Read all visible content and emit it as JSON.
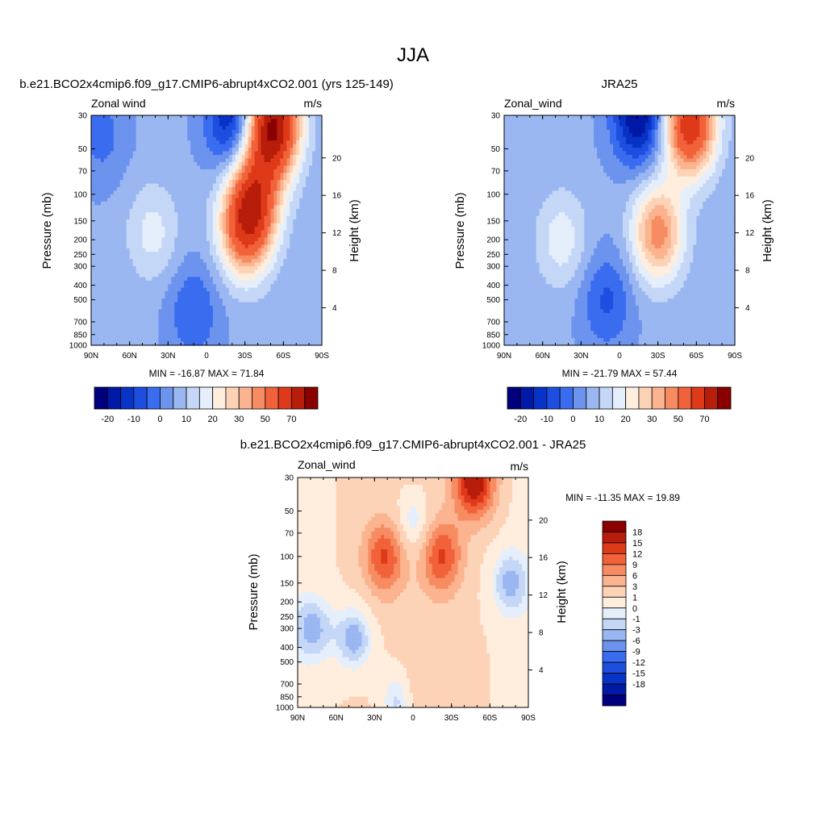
{
  "figure_title": "JJA",
  "colors": {
    "panel_palette": [
      "#00007f",
      "#0019a6",
      "#0733c6",
      "#1e4ee0",
      "#3a6cf0",
      "#6c93ee",
      "#9ab7f2",
      "#c5d7f7",
      "#e5eefb",
      "#ffeedd",
      "#fdd3b8",
      "#fbb48f",
      "#f78c62",
      "#f2623a",
      "#de3a1a",
      "#b71d0b",
      "#8a0000"
    ],
    "diff_palette": [
      "#00007f",
      "#0019a6",
      "#0733c6",
      "#1e4ee0",
      "#3a6cf0",
      "#6c93ee",
      "#9ab7f2",
      "#c5d7f7",
      "#e5eefb",
      "#ffeedd",
      "#fdd3b8",
      "#fbb48f",
      "#f78c62",
      "#f2623a",
      "#de3a1a",
      "#b71d0b",
      "#8a0000"
    ]
  },
  "chart_data": [
    {
      "type": "heatmap",
      "title": "b.e21.BCO2x4cmip6.f09_g17.CMIP6-abrupt4xCO2.001 (yrs 125-149)",
      "variable": "Zonal wind",
      "units": "m/s",
      "ylabel": "Pressure (mb)",
      "ylabel_right": "Height (km)",
      "xticks": [
        "90N",
        "60N",
        "30N",
        "0",
        "30S",
        "60S",
        "90S"
      ],
      "yticks": [
        "30",
        "50",
        "70",
        "100",
        "150",
        "200",
        "250",
        "300",
        "400",
        "500",
        "700",
        "850",
        "1000"
      ],
      "yticks_right": [
        "20",
        "16",
        "12",
        "8",
        "4"
      ],
      "y_scale": "log",
      "stats": "MIN = -16.87  MAX =  71.84",
      "min": -16.87,
      "max": 71.84,
      "colorbar_labels": [
        "-20",
        "-10",
        "0",
        "10",
        "20",
        "30",
        "50",
        "70"
      ],
      "features": [
        {
          "lat": -52,
          "p": 35,
          "value": 71
        },
        {
          "lat": -30,
          "p": 170,
          "value": 45
        },
        {
          "lat": -38,
          "p": 100,
          "value": 40
        },
        {
          "lat": -20,
          "p": 32,
          "value": -16
        },
        {
          "lat": 42,
          "p": 180,
          "value": 17
        },
        {
          "lat": 10,
          "p": 600,
          "value": -5
        },
        {
          "lat": 82,
          "p": 40,
          "value": -2
        }
      ]
    },
    {
      "type": "heatmap",
      "title": "JRA25",
      "variable": "Zonal_wind",
      "units": "m/s",
      "ylabel": "Pressure (mb)",
      "ylabel_right": "Height (km)",
      "xticks": [
        "90N",
        "60N",
        "30N",
        "0",
        "30S",
        "60S",
        "90S"
      ],
      "yticks": [
        "30",
        "50",
        "70",
        "100",
        "150",
        "200",
        "250",
        "300",
        "400",
        "500",
        "700",
        "850",
        "1000"
      ],
      "yticks_right": [
        "20",
        "16",
        "12",
        "8",
        "4"
      ],
      "y_scale": "log",
      "stats": "MIN = -21.79  MAX =  57.44",
      "min": -21.79,
      "max": 57.44,
      "colorbar_labels": [
        "-20",
        "-10",
        "0",
        "10",
        "20",
        "30",
        "50",
        "70"
      ],
      "features": [
        {
          "lat": -55,
          "p": 35,
          "value": 57
        },
        {
          "lat": -30,
          "p": 180,
          "value": 38
        },
        {
          "lat": -15,
          "p": 30,
          "value": -21
        },
        {
          "lat": 45,
          "p": 200,
          "value": 18
        },
        {
          "lat": 10,
          "p": 500,
          "value": -6
        }
      ]
    },
    {
      "type": "heatmap",
      "title": "b.e21.BCO2x4cmip6.f09_g17.CMIP6-abrupt4xCO2.001 - JRA25",
      "variable": "Zonal_wind",
      "units": "m/s",
      "ylabel": "Pressure (mb)",
      "ylabel_right": "Height (km)",
      "xticks": [
        "90N",
        "60N",
        "30N",
        "0",
        "30S",
        "60S",
        "90S"
      ],
      "yticks": [
        "30",
        "50",
        "70",
        "100",
        "150",
        "200",
        "250",
        "300",
        "400",
        "500",
        "700",
        "850",
        "1000"
      ],
      "yticks_right": [
        "20",
        "16",
        "12",
        "8",
        "4"
      ],
      "y_scale": "log",
      "stats": "MIN = -11.35  MAX =  19.89",
      "min": -11.35,
      "max": 19.89,
      "colorbar_labels": [
        "18",
        "15",
        "12",
        "9",
        "6",
        "3",
        "1",
        "0",
        "-1",
        "-3",
        "-6",
        "-9",
        "-12",
        "-15",
        "-18"
      ],
      "features": [
        {
          "lat": -48,
          "p": 32,
          "value": 19.9
        },
        {
          "lat": -22,
          "p": 100,
          "value": 14
        },
        {
          "lat": 22,
          "p": 100,
          "value": 14
        },
        {
          "lat": 0,
          "p": 65,
          "value": -3
        },
        {
          "lat": 45,
          "p": 350,
          "value": -3
        },
        {
          "lat": 78,
          "p": 300,
          "value": -2
        },
        {
          "lat": -75,
          "p": 150,
          "value": -2
        },
        {
          "lat": 10,
          "p": 900,
          "value": -3
        },
        {
          "lat": -5,
          "p": 800,
          "value": 5
        }
      ]
    }
  ]
}
